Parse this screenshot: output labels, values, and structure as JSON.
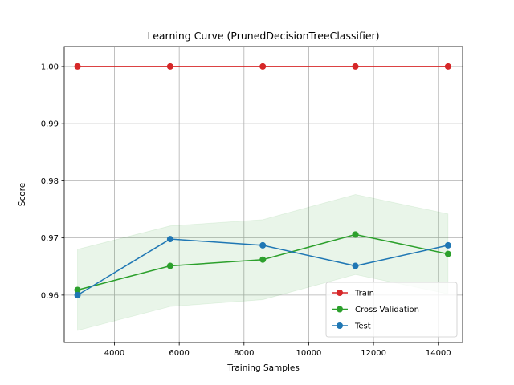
{
  "chart_data": {
    "type": "line",
    "title": "Learning Curve (PrunedDecisionTreeClassifier)",
    "xlabel": "Training Samples",
    "ylabel": "Score",
    "xlim": [
      2450,
      14750
    ],
    "ylim": [
      0.9517,
      1.0035
    ],
    "xticks": [
      4000,
      6000,
      8000,
      10000,
      12000,
      14000
    ],
    "xtick_labels": [
      "4000",
      "6000",
      "8000",
      "10000",
      "12000",
      "14000"
    ],
    "yticks": [
      0.96,
      0.97,
      0.98,
      0.99,
      1.0
    ],
    "ytick_labels": [
      "0.96",
      "0.97",
      "0.98",
      "0.99",
      "1.00"
    ],
    "grid": true,
    "legend_position": "lower-right",
    "x": [
      2860,
      5720,
      8580,
      11440,
      14300
    ],
    "series": [
      {
        "name": "Train",
        "color": "#d62728",
        "values": [
          1.0,
          1.0,
          1.0,
          1.0,
          1.0
        ],
        "band": null
      },
      {
        "name": "Cross Validation",
        "color": "#2ca02c",
        "values": [
          0.9609,
          0.9651,
          0.9662,
          0.9706,
          0.9672
        ],
        "band": {
          "upper": [
            0.968,
            0.9721,
            0.9732,
            0.9776,
            0.9742
          ],
          "lower": [
            0.9538,
            0.958,
            0.9592,
            0.9636,
            0.9602
          ]
        }
      },
      {
        "name": "Test",
        "color": "#1f77b4",
        "values": [
          0.96,
          0.9698,
          0.9687,
          0.9651,
          0.9687
        ],
        "band": null
      }
    ]
  }
}
